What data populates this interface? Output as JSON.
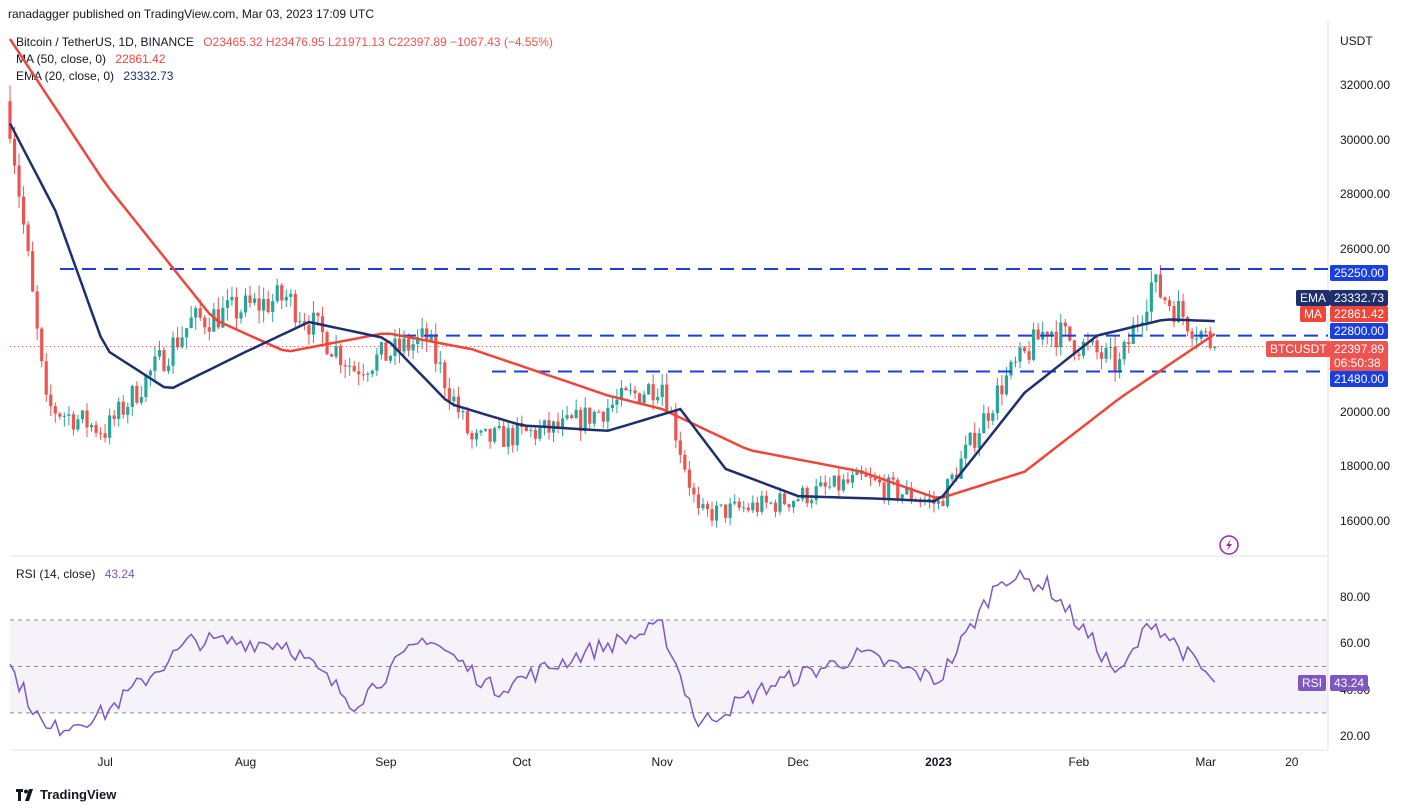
{
  "publisher": "ranadagger published on TradingView.com, Mar 03, 2023 17:09 UTC",
  "symbol_line": {
    "name": "Bitcoin / TetherUS, 1D, BINANCE",
    "open": "O23465.32",
    "high": "H23476.95",
    "low": "L21971.13",
    "close": "C22397.89",
    "change": "−1067.43 (−4.55%)"
  },
  "ma_line": {
    "label": "MA (50, close, 0)",
    "value": "22861.42"
  },
  "ema_line": {
    "label": "EMA (20, close, 0)",
    "value": "23332.73"
  },
  "rsi_line": {
    "label": "RSI (14, close)",
    "value": "43.24"
  },
  "currency": "USDT",
  "price_ticks": [
    "32000.00",
    "30000.00",
    "28000.00",
    "26000.00",
    "20000.00",
    "18000.00",
    "16000.00"
  ],
  "rsi_ticks": [
    "80.00",
    "60.00",
    "40.00",
    "20.00"
  ],
  "x_labels": [
    "Jul",
    "Aug",
    "Sep",
    "Oct",
    "Nov",
    "Dec",
    "2023",
    "Feb",
    "Mar",
    "20"
  ],
  "tags": {
    "level_high": "25250.00",
    "ema_label": "EMA",
    "ema_value": "23332.73",
    "ma_label": "MA",
    "ma_value": "22861.42",
    "level_mid": "22800.00",
    "symbol": "BTCUSDT",
    "price": "22397.89",
    "countdown": "06:50:38",
    "level_low": "21480.00",
    "rsi_label": "RSI",
    "rsi_value": "43.24"
  },
  "footer_brand": "TradingView",
  "colors": {
    "up": "#26a69a",
    "down": "#ef5350",
    "ma": "#f0453a",
    "ema": "#1e2f6e",
    "rsi": "#7e57c2",
    "level": "#1a3fe0"
  },
  "chart_data": {
    "type": "candlestick",
    "title": "Bitcoin / TetherUS, 1D, BINANCE",
    "ylim": [
      14700,
      34400
    ],
    "rsi_ylim": [
      14,
      95
    ],
    "horizontal_levels": [
      25250,
      22800,
      21480
    ],
    "series": [
      {
        "name": "MA (50, close, 0)",
        "x": [
          "2022-06-10",
          "2022-07-01",
          "2022-07-25",
          "2022-08-10",
          "2022-09-01",
          "2022-09-20",
          "2022-10-20",
          "2022-11-01",
          "2022-11-20",
          "2022-12-15",
          "2023-01-01",
          "2023-01-20",
          "2023-02-10",
          "2023-03-03"
        ],
        "values": [
          33700,
          28400,
          23400,
          22200,
          22900,
          22300,
          20600,
          20100,
          18600,
          17800,
          16800,
          17800,
          20500,
          22861
        ]
      },
      {
        "name": "EMA (20, close, 0)",
        "x": [
          "2022-06-10",
          "2022-06-20",
          "2022-07-01",
          "2022-07-15",
          "2022-08-01",
          "2022-08-15",
          "2022-09-01",
          "2022-09-15",
          "2022-10-01",
          "2022-10-20",
          "2022-11-05",
          "2022-11-15",
          "2022-12-01",
          "2022-12-20",
          "2023-01-01",
          "2023-01-20",
          "2023-02-05",
          "2023-02-20",
          "2023-03-03"
        ],
        "values": [
          30600,
          27400,
          22300,
          20800,
          22200,
          23300,
          22700,
          20300,
          19500,
          19300,
          20100,
          17900,
          16900,
          16800,
          16700,
          20700,
          22800,
          23400,
          23332
        ]
      },
      {
        "name": "RSI (14, close)",
        "x": [
          "2022-06-10",
          "2022-06-18",
          "2022-07-01",
          "2022-07-20",
          "2022-08-10",
          "2022-08-25",
          "2022-09-10",
          "2022-09-25",
          "2022-10-15",
          "2022-11-01",
          "2022-11-09",
          "2022-11-25",
          "2022-12-15",
          "2023-01-01",
          "2023-01-15",
          "2023-01-25",
          "2023-02-10",
          "2023-02-17",
          "2023-03-03"
        ],
        "values": [
          50,
          22,
          30,
          61,
          60,
          34,
          63,
          40,
          56,
          67,
          25,
          42,
          55,
          44,
          89,
          85,
          46,
          70,
          43.24
        ]
      },
      {
        "name": "BTCUSDT",
        "x": [
          "2022-06-10",
          "2022-06-18",
          "2022-07-01",
          "2022-07-20",
          "2022-08-10",
          "2022-08-25",
          "2022-09-10",
          "2022-09-20",
          "2022-10-10",
          "2022-11-01",
          "2022-11-09",
          "2022-11-25",
          "2022-12-15",
          "2023-01-01",
          "2023-01-15",
          "2023-01-25",
          "2023-02-10",
          "2023-02-17",
          "2023-03-03"
        ],
        "values": [
          30800,
          20200,
          19300,
          23300,
          24200,
          21600,
          22700,
          18900,
          19400,
          21100,
          16200,
          16600,
          17500,
          16600,
          21000,
          23100,
          21700,
          24700,
          22398
        ]
      }
    ]
  }
}
